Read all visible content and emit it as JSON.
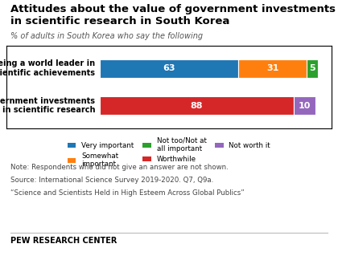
{
  "chart_data": {
    "type": "bar",
    "orientation": "horizontal",
    "stacked": true,
    "title": "Attitudes about the value of government investments\nin scientific research in South Korea",
    "subtitle": "% of adults in South Korea who say the following",
    "categories": [
      "Being a world leader in\nscientific achievements",
      "Government investments\nin scientific research"
    ],
    "series": [
      {
        "name": "Very important",
        "values": [
          63,
          null
        ]
      },
      {
        "name": "Somewhat\nimportant",
        "values": [
          31,
          null
        ]
      },
      {
        "name": "Not too/Not at\nall important",
        "values": [
          5,
          null
        ]
      },
      {
        "name": "Worthwhile",
        "values": [
          null,
          88
        ]
      },
      {
        "name": "Not worth it",
        "values": [
          null,
          10
        ]
      }
    ],
    "xlim": [
      -42,
      105
    ],
    "xticks": [],
    "tick_labels": false,
    "data_labels": true,
    "legend": "upper center",
    "grid": false,
    "notes": [
      "Note: Respondents who did not give an answer are not shown.",
      "Source: International Science Survey 2019-2020. Q7, Q9a.",
      "“Science and Scientists Held in High Esteem Across Global Publics”"
    ],
    "footer": "PEW RESEARCH CENTER"
  }
}
